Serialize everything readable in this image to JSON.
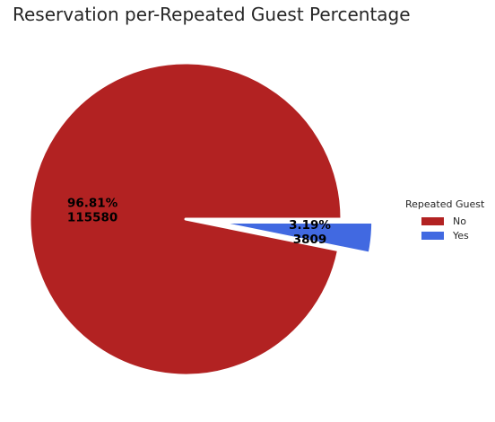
{
  "chart_data": {
    "type": "pie",
    "title": "Reservation per-Repeated Guest Percentage",
    "categories": [
      "No",
      "Yes"
    ],
    "values": [
      115580,
      3809
    ],
    "percent_labels": [
      "96.81%",
      "3.19%"
    ],
    "count_labels": [
      "115580",
      "3809"
    ],
    "colors": [
      "#b22222",
      "#4169e1"
    ],
    "exploded": [
      "No",
      "Yes"
    ],
    "legend": {
      "title": "Repeated Guest",
      "placement": "center-right",
      "entries": [
        "No",
        "Yes"
      ]
    }
  }
}
